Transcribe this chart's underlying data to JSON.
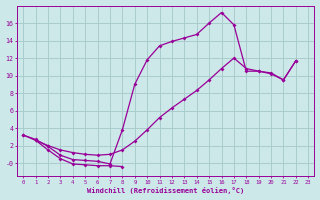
{
  "background_color": "#cce8e8",
  "grid_color": "#aacccc",
  "line_color": "#990099",
  "xlim_min": -0.5,
  "xlim_max": 23.5,
  "ylim_min": -1.5,
  "ylim_max": 18.0,
  "xticks": [
    0,
    1,
    2,
    3,
    4,
    5,
    6,
    7,
    8,
    9,
    10,
    11,
    12,
    13,
    14,
    15,
    16,
    17,
    18,
    19,
    20,
    21,
    22,
    23
  ],
  "yticks": [
    0,
    2,
    4,
    6,
    8,
    10,
    12,
    14,
    16
  ],
  "ytick_labels": [
    "-0",
    "2",
    "4",
    "6",
    "8",
    "10",
    "12",
    "14",
    "16"
  ],
  "xlabel": "Windchill (Refroidissement éolien,°C)",
  "curve1_x": [
    0,
    1,
    2,
    3,
    4,
    5,
    6,
    7,
    8,
    9,
    10,
    11,
    12,
    13,
    14,
    15,
    16,
    17,
    18,
    19,
    20,
    21,
    22
  ],
  "curve1_y": [
    3.2,
    2.7,
    1.9,
    0.9,
    0.4,
    0.3,
    0.2,
    -0.1,
    3.8,
    9.0,
    11.8,
    13.4,
    13.9,
    14.3,
    14.7,
    16.0,
    17.2,
    15.8,
    10.5,
    10.5,
    10.3,
    9.5,
    11.7
  ],
  "curve2_x": [
    1,
    2,
    3,
    4,
    5,
    6,
    7,
    8
  ],
  "curve2_y": [
    2.6,
    1.5,
    0.5,
    -0.1,
    -0.2,
    -0.3,
    -0.3,
    -0.4
  ],
  "curve3_x": [
    0,
    1,
    2,
    3,
    4,
    5,
    6,
    7,
    8,
    9,
    10,
    11,
    12,
    13,
    14,
    15,
    16,
    17,
    18,
    19,
    20,
    21,
    22
  ],
  "curve3_y": [
    3.2,
    2.6,
    2.0,
    1.5,
    1.2,
    1.0,
    0.9,
    1.0,
    1.5,
    2.5,
    3.8,
    5.2,
    6.3,
    7.3,
    8.3,
    9.5,
    10.8,
    12.0,
    10.8,
    10.5,
    10.2,
    9.5,
    11.7
  ]
}
